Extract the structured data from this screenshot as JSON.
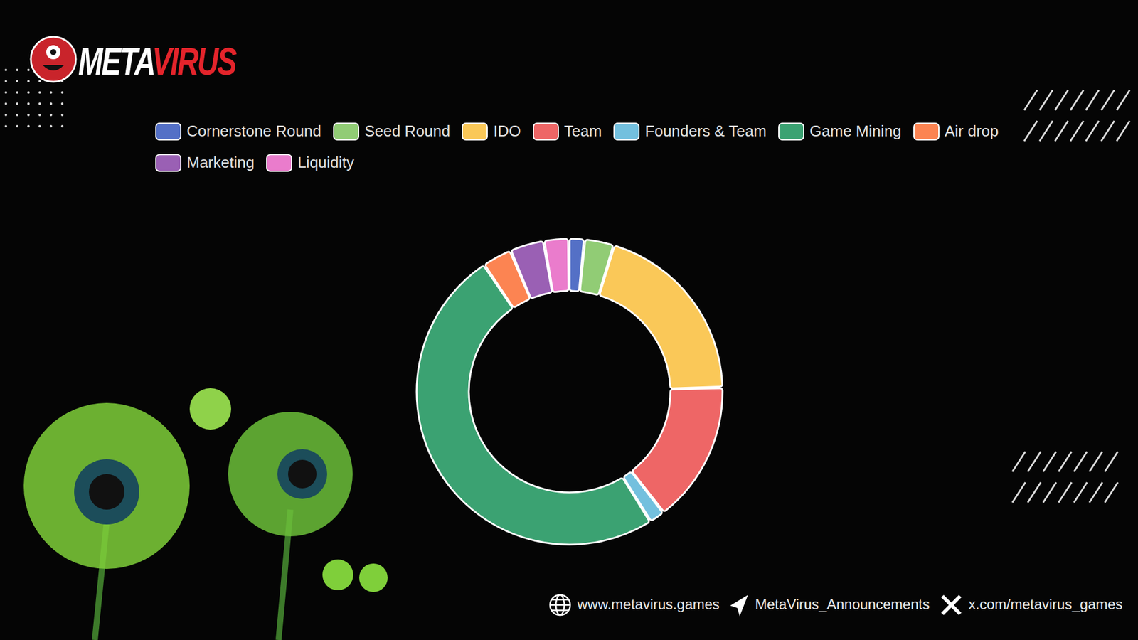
{
  "header": {
    "logo": "METAVIRUS"
  },
  "chart_data": {
    "type": "pie",
    "categories": [
      "Cornerstone Round",
      "Seed Round",
      "IDO",
      "Team",
      "Founders & Team",
      "Game Mining",
      "Air drop",
      "Marketing",
      "Liquidity"
    ],
    "values": [
      1.5,
      3,
      20,
      15,
      1.5,
      50,
      3,
      3.5,
      2.5
    ],
    "colors": [
      "#5470c6",
      "#91cc75",
      "#fac858",
      "#ee6666",
      "#73c0de",
      "#3ba272",
      "#fc8452",
      "#9a60b4",
      "#ea7ccc"
    ],
    "legend": "top",
    "data_labels": false
  },
  "footer": {
    "website": "www.metavirus.games",
    "telegram": "MetaVirus_Announcements",
    "x": "x.com/metavirus_games"
  }
}
